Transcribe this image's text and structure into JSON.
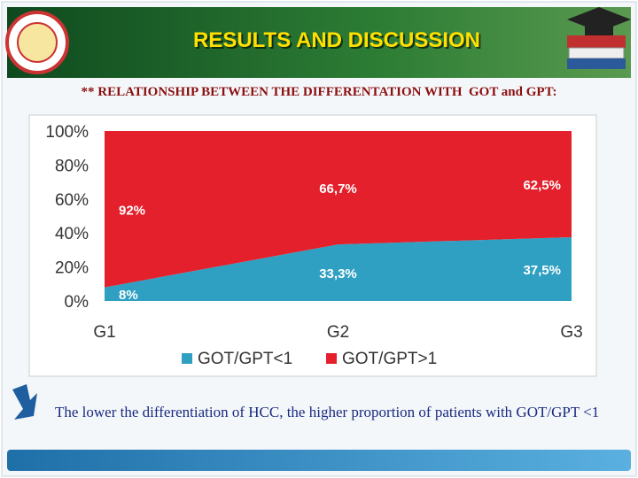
{
  "header": {
    "title": "RESULTS AND DISCUSSION"
  },
  "subtitle": "** RELATIONSHIP BETWEEN THE DIFFERENTATION WITH  GOT and GPT:",
  "chart_data": {
    "type": "stacked_area",
    "categories": [
      "G1",
      "G2",
      "G3"
    ],
    "series": [
      {
        "name": "GOT/GPT<1",
        "color": "#2fa0c2",
        "values": [
          8,
          33.3,
          37.5
        ],
        "value_labels": [
          "8%",
          "33,3%",
          "37,5%"
        ]
      },
      {
        "name": "GOT/GPT>1",
        "color": "#e3202b",
        "values": [
          92,
          66.7,
          62.5
        ],
        "value_labels": [
          "92%",
          "66,7%",
          "62,5%"
        ]
      }
    ],
    "ylim": [
      0,
      100
    ],
    "yticks": [
      {
        "value": 0,
        "label": "0%"
      },
      {
        "value": 20,
        "label": "20%"
      },
      {
        "value": 40,
        "label": "40%"
      },
      {
        "value": 60,
        "label": "60%"
      },
      {
        "value": 80,
        "label": "80%"
      },
      {
        "value": 100,
        "label": "100%"
      }
    ],
    "legend": "bottom"
  },
  "conclusion": "The lower the differentiation of HCC, the higher proportion of patients with GOT/GPT <1"
}
